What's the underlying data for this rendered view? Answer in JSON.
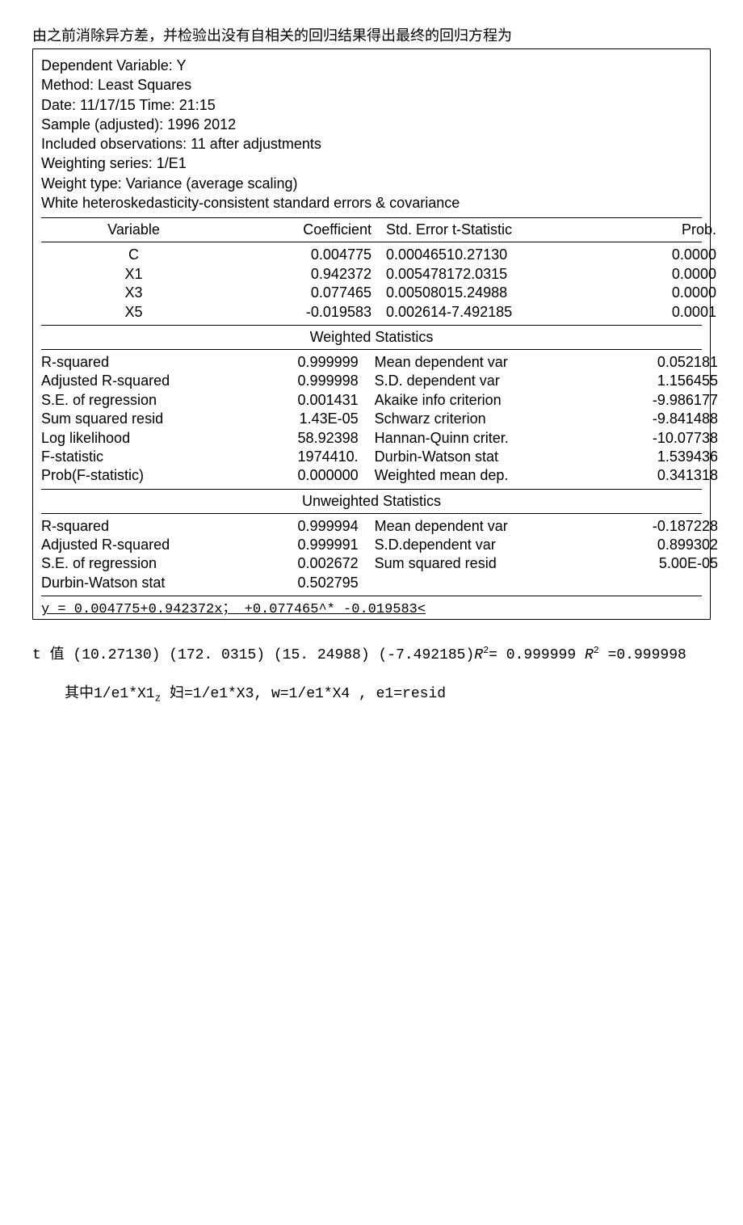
{
  "preamble": "由之前消除异方差，并检验出没有自相关的回归结果得出最终的回归方程为",
  "meta": {
    "l1": "Dependent Variable: Y",
    "l2": "Method: Least Squares",
    "l3": "Date: 11/17/15 Time: 21:15",
    "l4": "Sample (adjusted): 1996 2012",
    "l5": "Included observations: 11 after adjustments",
    "l6": "Weighting series: 1/E1",
    "l7": "Weight type: Variance (average scaling)",
    "l8": "White heteroskedasticity-consistent standard errors & covariance"
  },
  "head": {
    "variable": "Variable",
    "coef": "Coefficient",
    "stderr": "Std. Error t-Statistic",
    "prob": "Prob."
  },
  "rows": [
    {
      "v": "C",
      "c": "0.004775",
      "se": "0.00046510.27130",
      "p": "0.0000"
    },
    {
      "v": "X1",
      "c": "0.942372",
      "se": "0.005478172.0315",
      "p": "0.0000"
    },
    {
      "v": "X3",
      "c": "0.077465",
      "se": "0.00508015.24988",
      "p": "0.0000"
    },
    {
      "v": "X5",
      "c": "-0.019583",
      "se": "0.002614-7.492185",
      "p": "0.0001"
    }
  ],
  "weighted_title": "Weighted Statistics",
  "wstats": [
    {
      "l1": "R-squared",
      "l2": "0.999999",
      "r1": "Mean dependent var",
      "r2": "0.052181"
    },
    {
      "l1": "Adjusted R-squared",
      "l2": "0.999998",
      "r1": "S.D. dependent var",
      "r2": "1.156455"
    },
    {
      "l1": "S.E. of regression",
      "l2": "0.001431",
      "r1": "Akaike info criterion",
      "r2": "-9.986177"
    },
    {
      "l1": "Sum squared resid",
      "l2": "1.43E-05",
      "r1": "Schwarz criterion",
      "r2": "-9.841488"
    },
    {
      "l1": "Log likelihood",
      "l2": "58.92398",
      "r1": "Hannan-Quinn criter.",
      "r2": "-10.07738"
    },
    {
      "l1": "F-statistic",
      "l2": "1974410.",
      "r1": "Durbin-Watson stat",
      "r2": "1.539436"
    },
    {
      "l1": "Prob(F-statistic)",
      "l2": "0.000000",
      "r1": "Weighted mean dep.",
      "r2": "0.341318"
    }
  ],
  "unweighted_title": "Unweighted Statistics",
  "ustats": [
    {
      "l1": "R-squared",
      "l2": "0.999994",
      "r1": "Mean dependent var",
      "r2": "-0.187228"
    },
    {
      "l1": "Adjusted R-squared",
      "l2": "0.999991",
      "r1": "S.D.dependent var",
      "r2": "0.899302"
    },
    {
      "l1": "S.E. of regression",
      "l2": "0.002672",
      "r1": "Sum squared resid",
      "r2": "5.00E-05"
    },
    {
      "l1": "Durbin-Watson stat",
      "l2": "0.502795",
      "r1": "",
      "r2": ""
    }
  ],
  "equation": "y = 0.004775+0.942372x； +0.077465^* -0.019583<",
  "post1_pre": "t 值 (10.27130) (172. 0315) (15. 24988) (-7.492185)",
  "post1_r1a": "R",
  "post1_r1b": "= 0.999999 ",
  "post1_r2a": "R",
  "post1_r2b": " =0.999998",
  "post2": "其中1/e1*X1",
  "post2_sub": "z",
  "post2_tail": " 妇=1/e1*X3, w=1/e1*X4 , e1=resid"
}
